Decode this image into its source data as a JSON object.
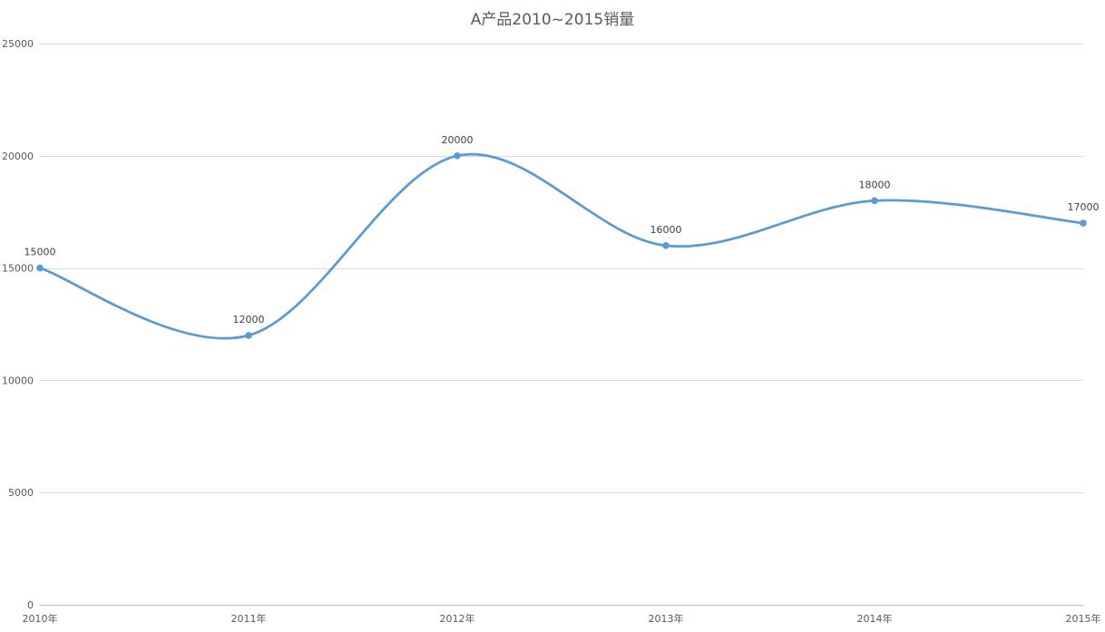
{
  "chart_data": {
    "type": "line",
    "title": "A产品2010~2015销量",
    "categories": [
      "2010年",
      "2011年",
      "2012年",
      "2013年",
      "2014年",
      "2015年"
    ],
    "series": [
      {
        "values": [
          15000,
          12000,
          20000,
          16000,
          18000,
          17000
        ],
        "color": "#5b9bd5"
      }
    ],
    "data_labels": [
      "15000",
      "12000",
      "20000",
      "16000",
      "18000",
      "17000"
    ],
    "y_ticks": [
      0,
      5000,
      10000,
      15000,
      20000,
      25000
    ],
    "ylim": [
      0,
      25000
    ],
    "smooth": true,
    "grid": true,
    "legend": "none",
    "xlabel": "",
    "ylabel": ""
  }
}
